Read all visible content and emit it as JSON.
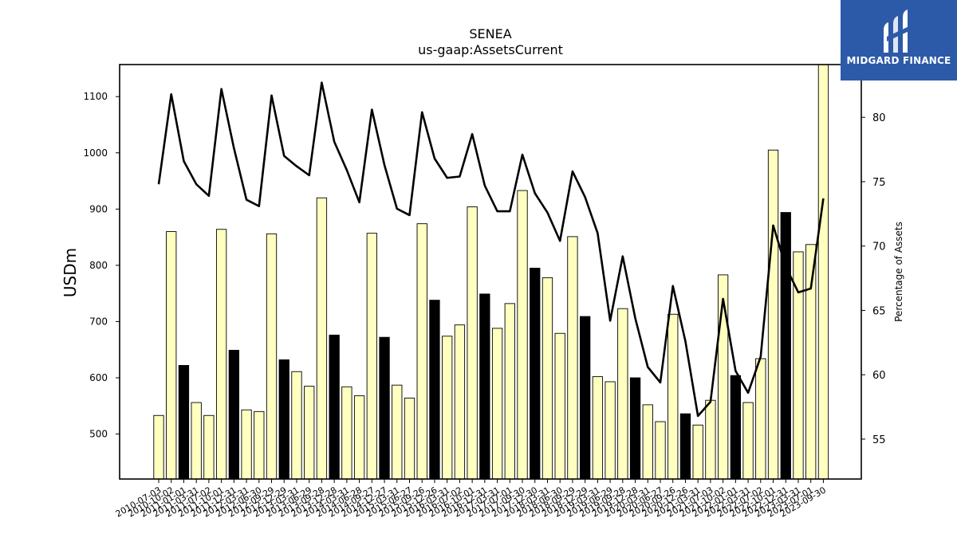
{
  "chart_data": {
    "type": "bar",
    "title": "SENEA",
    "subtitle": "us-gaap:AssetsCurrent",
    "ylabel": "USDm",
    "y2label": "Percentage of Assets",
    "ylim": [
      420,
      1157
    ],
    "y2lim": [
      51.9,
      84.1
    ],
    "yticks": [
      500,
      600,
      700,
      800,
      900,
      1000,
      1100
    ],
    "y2ticks": [
      55,
      60,
      65,
      70,
      75,
      80
    ],
    "bar_color_default": "#ffffc0",
    "bar_color_highlight": "#000000",
    "line_color": "#000000",
    "categories": [
      "2010-07-03",
      "2010-10-02",
      "2011-01-01",
      "2011-03-31",
      "2011-07-02",
      "2011-10-01",
      "2011-12-31",
      "2012-03-31",
      "2012-06-30",
      "2012-09-29",
      "2012-12-29",
      "2013-03-31",
      "2013-06-29",
      "2013-09-28",
      "2013-12-28",
      "2014-03-31",
      "2014-06-28",
      "2014-09-27",
      "2014-12-27",
      "2015-03-31",
      "2015-06-27",
      "2015-09-26",
      "2015-12-26",
      "2016-03-31",
      "2016-07-02",
      "2016-10-01",
      "2016-12-31",
      "2017-03-31",
      "2017-07-01",
      "2017-09-30",
      "2017-12-30",
      "2018-03-31",
      "2018-06-30",
      "2018-09-29",
      "2018-12-29",
      "2019-03-31",
      "2019-06-29",
      "2019-09-28",
      "2019-12-28",
      "2020-03-31",
      "2020-06-27",
      "2020-09-26",
      "2020-12-26",
      "2021-03-31",
      "2021-07-03",
      "2021-10-02",
      "2022-01-01",
      "2022-03-31",
      "2022-07-02",
      "2022-10-01",
      "2022-12-31",
      "2023-03-31",
      "2023-07-01",
      "2023-09-30"
    ],
    "xticks_shown": [
      "2010-07-03",
      "2010-10-02",
      "2011-01-01",
      "2011-03-31",
      "2011-07-02",
      "2011-10-01",
      "2011-12-31",
      "2012-03-31",
      "2012-06-30",
      "2012-09-29",
      "2012-12-29",
      "2013-03-31",
      "2013-06-29",
      "2013-09-28",
      "2013-12-28",
      "2014-03-31",
      "2014-06-28",
      "2014-09-27",
      "2014-12-27",
      "2015-03-31",
      "2015-06-27",
      "2015-09-26",
      "2015-12-26",
      "2016-03-31",
      "2016-07-02",
      "2016-10-01",
      "2016-12-31",
      "2017-03-31",
      "2017-07-01",
      "2017-09-30",
      "2017-12-30",
      "2018-03-31",
      "2018-06-30",
      "2018-09-29",
      "2018-12-29",
      "2019-03-31",
      "2019-06-29",
      "2019-09-28",
      "2019-12-28",
      "2020-03-31",
      "2020-06-27",
      "2020-09-26",
      "2020-12-26",
      "2021-03-31",
      "2021-07-03",
      "2021-10-02",
      "2022-01-01",
      "2022-03-31",
      "2022-07-02",
      "2022-10-01",
      "2022-12-31",
      "2023-03-31",
      "2023-07-01",
      "2023-09-30"
    ],
    "series": [
      {
        "type": "bar",
        "values": [
          533,
          860,
          622,
          556,
          533,
          864,
          649,
          543,
          540,
          856,
          632,
          611,
          585,
          920,
          676,
          584,
          568,
          857,
          672,
          587,
          564,
          874,
          738,
          674,
          694,
          904,
          749,
          688,
          732,
          933,
          795,
          778,
          679,
          851,
          709,
          602,
          593,
          723,
          600,
          552,
          522,
          713,
          536,
          516,
          560,
          783,
          604,
          556,
          634,
          1005,
          894,
          824,
          837,
          1160
        ],
        "highlight": [
          false,
          false,
          true,
          false,
          false,
          false,
          true,
          false,
          false,
          false,
          true,
          false,
          false,
          false,
          true,
          false,
          false,
          false,
          true,
          false,
          false,
          false,
          true,
          false,
          false,
          false,
          true,
          false,
          false,
          false,
          true,
          false,
          false,
          false,
          true,
          false,
          false,
          false,
          true,
          false,
          false,
          false,
          true,
          false,
          false,
          false,
          true,
          false,
          false,
          false,
          true,
          false,
          false,
          false
        ]
      },
      {
        "type": "line",
        "axis": "right",
        "values": [
          74.8,
          81.8,
          76.6,
          74.8,
          73.9,
          82.2,
          77.6,
          73.6,
          73.1,
          81.7,
          77.0,
          76.2,
          75.5,
          82.7,
          78.1,
          75.9,
          73.4,
          80.6,
          76.3,
          72.9,
          72.4,
          80.4,
          76.8,
          75.3,
          75.4,
          78.7,
          74.7,
          72.7,
          72.7,
          77.1,
          74.1,
          72.6,
          70.4,
          75.8,
          73.8,
          71.0,
          64.2,
          69.2,
          64.4,
          60.6,
          59.4,
          66.9,
          62.6,
          56.8,
          57.9,
          65.9,
          60.3,
          58.6,
          61.4,
          71.6,
          68.4,
          66.4,
          66.7,
          73.7
        ]
      }
    ]
  },
  "logo": {
    "text": "MIDGARD FINANCE",
    "background": "#2d5aa8"
  }
}
